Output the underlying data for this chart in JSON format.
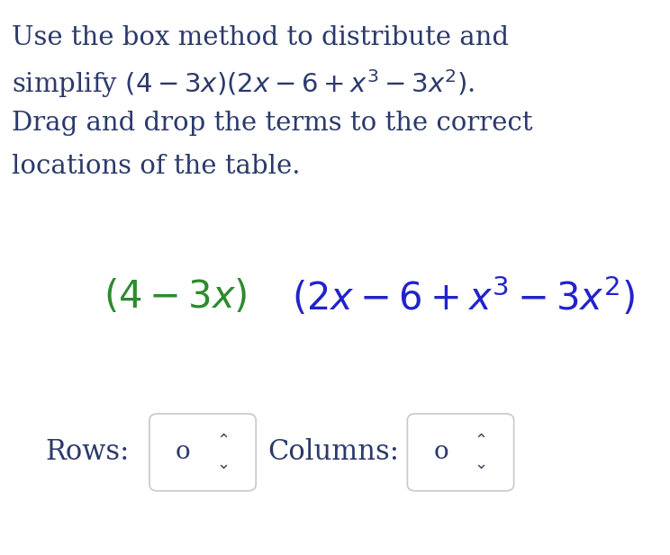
{
  "background_color": "#ffffff",
  "instruction_color": "#2b3a6b",
  "green_color": "#2d8a2d",
  "blue_color": "#2222cc",
  "rows_label": "Rows:",
  "columns_label": "Columns:",
  "spinner_value": "o",
  "label_color": "#2b3a6b",
  "box_edge_color": "#c8c8c8",
  "box_face_color": "#ffffff",
  "instr_fontsize": 21,
  "math_fontsize": 30,
  "label_fontsize": 22,
  "spinner_fontsize": 20,
  "arrow_fontsize": 13,
  "fig_width": 7.44,
  "fig_height": 6.17,
  "dpi": 100,
  "line1": "Use the box method to distribute and",
  "line2_plain": "simplify ",
  "line2_math": "$(4 - 3x)(2x - 6 + x^3 - 3x^2)$.",
  "line3": "Drag and drop the terms to the correct",
  "line4": "locations of the table.",
  "green_math": "$(4-3x)$",
  "blue_math": "$(2x-6+x^3-3x^2)$"
}
